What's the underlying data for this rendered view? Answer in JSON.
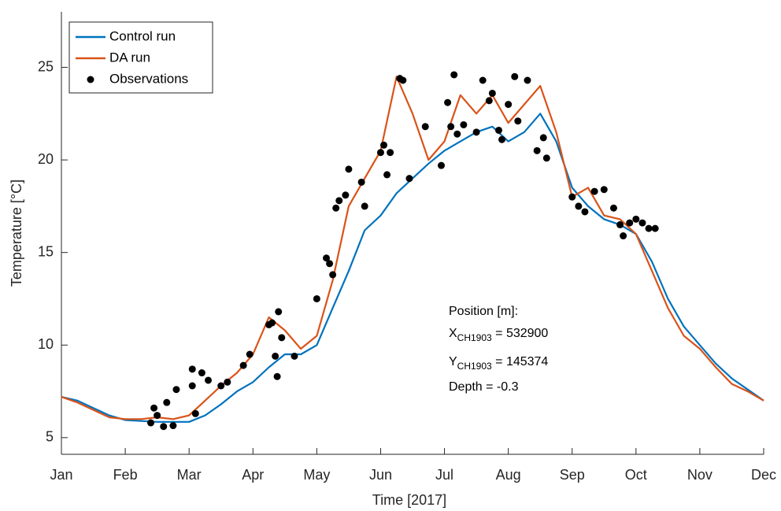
{
  "chart_data": {
    "type": "line",
    "xlabel": "Time [2017]",
    "ylabel": "Temperature [°C]",
    "legend": "upper left",
    "xlim": [
      0,
      11
    ],
    "xticks": [
      {
        "value": 0,
        "label": "Jan"
      },
      {
        "value": 1,
        "label": "Feb"
      },
      {
        "value": 2,
        "label": "Mar"
      },
      {
        "value": 3,
        "label": "Apr"
      },
      {
        "value": 4,
        "label": "May"
      },
      {
        "value": 5,
        "label": "Jun"
      },
      {
        "value": 6,
        "label": "Jul"
      },
      {
        "value": 7,
        "label": "Aug"
      },
      {
        "value": 8,
        "label": "Sep"
      },
      {
        "value": 9,
        "label": "Oct"
      },
      {
        "value": 10,
        "label": "Nov"
      },
      {
        "value": 11,
        "label": "Dec"
      }
    ],
    "ylim": [
      4.1,
      28
    ],
    "yticks": [
      5,
      10,
      15,
      20,
      25
    ],
    "x": [
      0,
      0.25,
      0.5,
      0.75,
      1,
      1.25,
      1.5,
      1.75,
      2,
      2.25,
      2.5,
      2.75,
      3,
      3.25,
      3.5,
      3.75,
      4,
      4.25,
      4.5,
      4.75,
      5,
      5.25,
      5.5,
      5.75,
      6,
      6.25,
      6.5,
      6.75,
      7,
      7.25,
      7.5,
      7.75,
      8,
      8.25,
      8.5,
      8.75,
      9,
      9.25,
      9.5,
      9.75,
      10,
      10.25,
      10.5,
      10.75,
      11
    ],
    "series": [
      {
        "name": "Control run",
        "color": "#0072bd",
        "values": [
          7.2,
          7.0,
          6.6,
          6.2,
          5.95,
          5.9,
          5.85,
          5.85,
          5.85,
          6.2,
          6.8,
          7.5,
          8.0,
          8.8,
          9.5,
          9.5,
          10.0,
          12.0,
          14.0,
          16.2,
          17.0,
          18.2,
          19.0,
          19.8,
          20.5,
          21.0,
          21.5,
          21.8,
          21.0,
          21.5,
          22.5,
          21.0,
          18.5,
          17.5,
          16.8,
          16.5,
          16.0,
          14.5,
          12.5,
          11.0,
          10.0,
          9.0,
          8.2,
          7.6,
          7.0
        ]
      },
      {
        "name": "DA run",
        "color": "#d95319",
        "values": [
          7.2,
          6.9,
          6.5,
          6.1,
          6.0,
          6.0,
          6.1,
          6.0,
          6.2,
          7.0,
          7.8,
          8.5,
          9.5,
          11.5,
          10.8,
          9.8,
          10.5,
          13.5,
          17.5,
          19.0,
          20.5,
          24.5,
          22.5,
          20.0,
          21.0,
          23.5,
          22.5,
          23.5,
          22.0,
          23.0,
          24.0,
          21.5,
          18.0,
          18.5,
          17.0,
          16.8,
          16.0,
          14.0,
          12.0,
          10.5,
          9.8,
          8.8,
          7.9,
          7.5,
          7.0
        ]
      }
    ],
    "observations": {
      "name": "Observations",
      "color": "#000000",
      "x": [
        1.4,
        1.45,
        1.5,
        1.6,
        1.65,
        1.75,
        1.8,
        2.05,
        2.05,
        2.1,
        2.2,
        2.3,
        2.5,
        2.6,
        2.85,
        2.95,
        3.25,
        3.3,
        3.35,
        3.38,
        3.4,
        3.45,
        3.65,
        4.0,
        4.15,
        4.2,
        4.25,
        4.3,
        4.35,
        4.45,
        4.5,
        4.7,
        4.75,
        5.0,
        5.05,
        5.1,
        5.15,
        5.3,
        5.35,
        5.45,
        5.7,
        5.95,
        6.05,
        6.1,
        6.15,
        6.2,
        6.3,
        6.5,
        6.6,
        6.7,
        6.75,
        6.85,
        6.9,
        7.0,
        7.1,
        7.15,
        7.3,
        7.45,
        7.55,
        7.6,
        8.0,
        8.1,
        8.2,
        8.35,
        8.5,
        8.65,
        8.75,
        8.8,
        8.9,
        9.0,
        9.1,
        9.2,
        9.3
      ],
      "y": [
        5.8,
        6.6,
        6.2,
        5.6,
        6.9,
        5.65,
        7.6,
        8.7,
        7.8,
        6.3,
        8.5,
        8.1,
        7.8,
        8.0,
        8.9,
        9.5,
        11.1,
        11.2,
        9.4,
        8.3,
        11.8,
        10.4,
        9.4,
        12.5,
        14.7,
        14.4,
        13.8,
        17.4,
        17.8,
        18.1,
        19.5,
        18.8,
        17.5,
        20.4,
        20.8,
        19.2,
        20.4,
        24.4,
        24.3,
        19.0,
        21.8,
        19.7,
        23.1,
        21.8,
        24.6,
        21.4,
        21.9,
        21.5,
        24.3,
        23.2,
        23.6,
        21.6,
        21.1,
        23.0,
        24.5,
        22.1,
        24.3,
        20.5,
        21.2,
        20.1,
        18.0,
        17.5,
        17.2,
        18.3,
        18.4,
        17.4,
        16.5,
        15.9,
        16.6,
        16.8,
        16.6,
        16.3,
        16.3
      ]
    },
    "annotation": {
      "title": "Position [m]:",
      "x_symbol": "X",
      "x_sub": "CH1903",
      "x_text": " = 532900",
      "y_symbol": "Y",
      "y_sub": "CH1903",
      "y_text": " = 145374",
      "depth": "Depth = -0.3"
    }
  }
}
